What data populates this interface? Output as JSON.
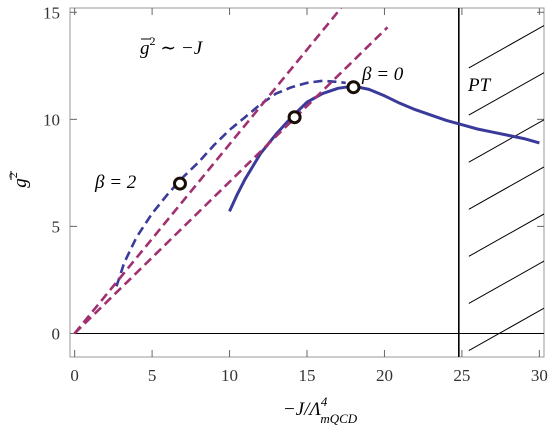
{
  "chart_data": {
    "type": "line",
    "title": "",
    "xlabel": "−J/Λ",
    "xlabel_sup": "4",
    "xlabel_sub": "mQCD",
    "ylabel": "g",
    "ylabel_sup": "2",
    "xlim": [
      -0.3,
      30.3
    ],
    "ylim": [
      -1.1,
      15.2
    ],
    "xticks": [
      0,
      5,
      10,
      15,
      20,
      25,
      30
    ],
    "yticks": [
      0,
      5,
      10,
      15
    ],
    "xtick_labels": [
      "0",
      "5",
      "10",
      "15",
      "20",
      "25",
      "30"
    ],
    "ytick_labels": [
      "0",
      "5",
      "10",
      "15"
    ],
    "grid": false,
    "series": [
      {
        "style": "dashed",
        "color": "#3a3a9a",
        "x": [
          2.7,
          3.2,
          4.0,
          5.0,
          6.0,
          7.0,
          8.0,
          9.0,
          10.0,
          11.0,
          12.0,
          13.0,
          14.0,
          15.0,
          16.0,
          17.0,
          17.5
        ],
        "y": [
          2.2,
          3.3,
          4.5,
          5.6,
          6.5,
          7.3,
          8.0,
          8.8,
          9.5,
          10.1,
          10.7,
          11.2,
          11.5,
          11.7,
          11.8,
          11.75,
          11.7
        ]
      },
      {
        "style": "solid",
        "color": "#3a3a9a",
        "x": [
          10.0,
          10.5,
          11.0,
          12.0,
          13.0,
          14.0,
          15.0,
          16.0,
          17.0,
          17.5,
          18.0,
          19.0,
          20.0,
          21.0,
          22.0,
          23.0,
          24.0,
          25.0,
          26.0,
          27.0,
          28.0,
          29.0,
          30.0
        ],
        "y": [
          5.7,
          6.5,
          7.2,
          8.4,
          9.3,
          10.1,
          10.8,
          11.2,
          11.45,
          11.5,
          11.55,
          11.4,
          11.1,
          10.75,
          10.45,
          10.2,
          9.95,
          9.75,
          9.55,
          9.4,
          9.25,
          9.1,
          8.9
        ]
      },
      {
        "style": "dashed",
        "color": "#a03070",
        "x": [
          0,
          17.2
        ],
        "y": [
          0,
          15.2
        ]
      },
      {
        "style": "dashed",
        "color": "#a03070",
        "x": [
          0,
          20.2
        ],
        "y": [
          0,
          14.3
        ]
      }
    ],
    "points": [
      {
        "x": 6.8,
        "y": 7.0
      },
      {
        "x": 14.2,
        "y": 10.1
      },
      {
        "x": 18.0,
        "y": 11.5
      }
    ],
    "phase_transition": {
      "x": 24.8,
      "label": "PT"
    },
    "annotations": {
      "beta2": "β = 2",
      "beta0": "β = 0",
      "slope_g": "g",
      "slope_sup": "2",
      "slope_rest": " ∼ −J"
    }
  }
}
